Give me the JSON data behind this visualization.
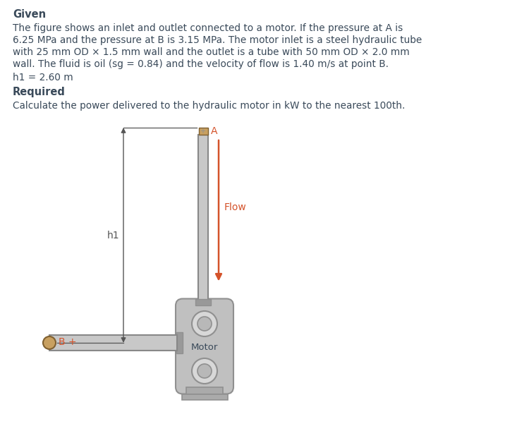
{
  "bg_color": "#ffffff",
  "text_color": "#3a4a5a",
  "orange_color": "#d4522a",
  "given_bold": "Given",
  "line1": "The figure shows an inlet and outlet connected to a motor. If the pressure at A is",
  "line2": "6.25 MPa and the pressure at B is 3.15 MPa. The motor inlet is a steel hydraulic tube",
  "line3": "with 25 mm OD × 1.5 mm wall and the outlet is a tube with 50 mm OD × 2.0 mm",
  "line4": "wall. The fluid is oil (sg = 0.84) and the velocity of flow is 1.40 m/s at point B.",
  "h1_label": "h1 = 2.60 m",
  "required_bold": "Required",
  "required_line": "Calculate the power delivered to the hydraulic motor in kW to the nearest 100th.",
  "label_A": "A",
  "label_B": "B +",
  "label_h1": "h1",
  "label_flow": "Flow",
  "label_motor": "Motor",
  "gray_tube_edge": "#888888",
  "gray_tube_fill": "#c8c8c8",
  "gray_motor_body": "#c0c0c0",
  "gray_motor_dark": "#909090",
  "gray_circle_fill": "#d8d8d8",
  "gray_circle_inner": "#b8b8b8",
  "gray_fitting": "#999999",
  "gray_base": "#aaaaaa",
  "cap_color": "#c8a060",
  "dim_line_color": "#555555"
}
